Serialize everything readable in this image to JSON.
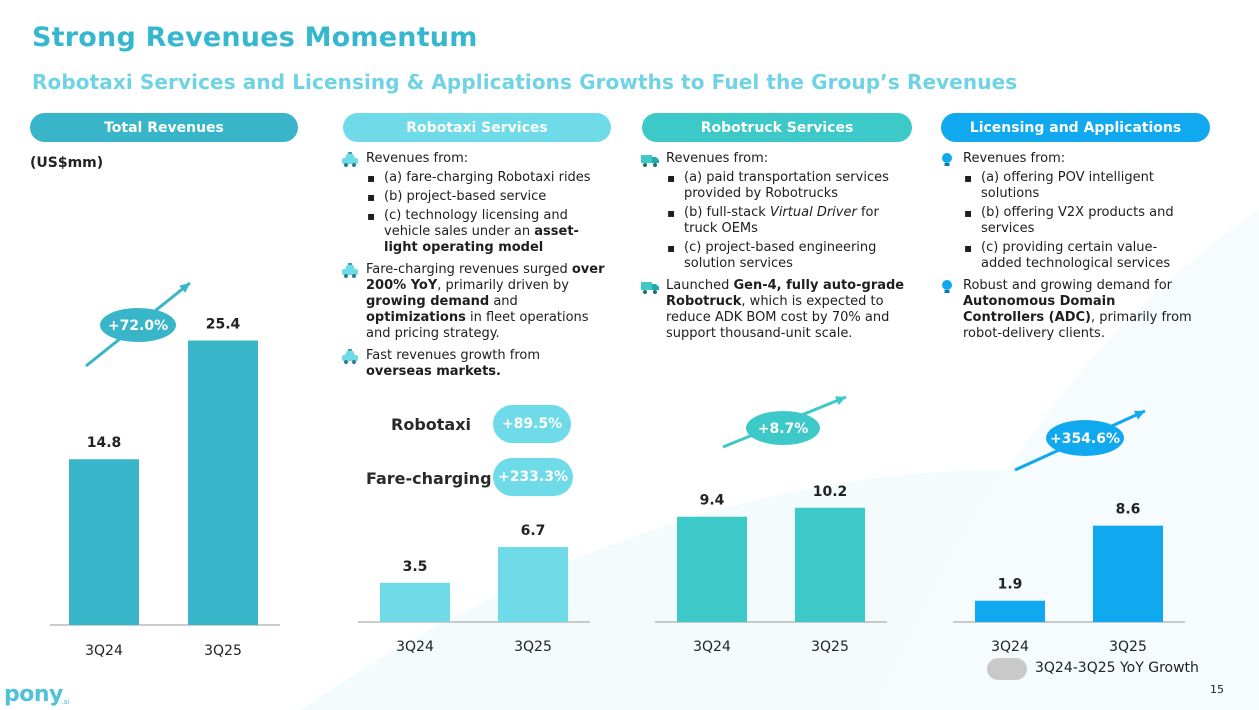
{
  "page": {
    "title": "Strong Revenues Momentum",
    "subtitle": "Robotaxi Services and Licensing & Applications Growths to Fuel the Group’s Revenues",
    "unit": "(US$mm)",
    "page_number": "15",
    "logo_text": "pony",
    "logo_suffix": ".ai",
    "legend": "3Q24-3Q25 YoY Growth"
  },
  "colors": {
    "title": "#35b8cf",
    "total": "#39b5ca",
    "robotaxi": "#6fdbe8",
    "robotruck": "#3ec9c9",
    "licensing": "#10a8ef",
    "legend_swatch": "#c9c9c9"
  },
  "segments": [
    {
      "name": "Total Revenues"
    },
    {
      "name": "Robotaxi Services"
    },
    {
      "name": "Robotruck Services"
    },
    {
      "name": "Licensing and Applications"
    }
  ],
  "robotaxi_text": {
    "revenues_from": "Revenues from:",
    "items": [
      "(a) fare-charging Robotaxi rides",
      "(b) project-based service",
      "(c) technology licensing and vehicle sales under an"
    ],
    "item3_bold": "asset-light operating model",
    "p2_a": "Fare-charging revenues surged",
    "p2_b": "over 200% YoY",
    "p2_c": ", primarily driven by",
    "p2_d": "growing demand",
    "p2_e": "and",
    "p2_f": "optimizations",
    "p2_g": "in fleet operations and pricing strategy.",
    "p3_a": "Fast revenues growth from",
    "p3_b": "overseas markets.",
    "kpi1_label": "Robotaxi",
    "kpi1_value": "+89.5%",
    "kpi2_label": "Fare-charging",
    "kpi2_value": "+233.3%"
  },
  "robotruck_text": {
    "revenues_from": "Revenues from:",
    "item1": "(a) paid transportation services provided by Robotrucks",
    "item2_a": "(b) full-stack",
    "item2_b": "Virtual Driver",
    "item2_c": "for truck OEMs",
    "item3": "(c) project-based engineering solution services",
    "p2_a": "Launched",
    "p2_b": "Gen-4, fully auto-grade Robotruck",
    "p2_c": ", which is expected to reduce ADK BOM cost by 70% and support thousand-unit scale."
  },
  "licensing_text": {
    "revenues_from": "Revenues from:",
    "items": [
      "(a) offering POV intelligent solutions",
      "(b) offering V2X products and services",
      "(c) providing certain value-added technological services"
    ],
    "p2_a": "Robust and growing demand for",
    "p2_b": "Autonomous Domain Controllers (ADC)",
    "p2_c": ", primarily from robot-delivery clients."
  },
  "chart_data": [
    {
      "type": "bar",
      "title": "Total Revenues",
      "categories": [
        "3Q24",
        "3Q25"
      ],
      "values": [
        14.8,
        25.4
      ],
      "labels": [
        "14.8",
        "25.4"
      ],
      "growth": "+72.0%",
      "unit": "US$mm",
      "ylim": [
        0,
        25.4
      ]
    },
    {
      "type": "bar",
      "title": "Robotaxi Services",
      "categories": [
        "3Q24",
        "3Q25"
      ],
      "values": [
        3.5,
        6.7
      ],
      "labels": [
        "3.5",
        "6.7"
      ],
      "growth": "+89.5%",
      "unit": "US$mm",
      "ylim": [
        0,
        25.4
      ]
    },
    {
      "type": "bar",
      "title": "Robotruck Services",
      "categories": [
        "3Q24",
        "3Q25"
      ],
      "values": [
        9.4,
        10.2
      ],
      "labels": [
        "9.4",
        "10.2"
      ],
      "growth": "+8.7%",
      "unit": "US$mm",
      "ylim": [
        0,
        25.4
      ]
    },
    {
      "type": "bar",
      "title": "Licensing and Applications",
      "categories": [
        "3Q24",
        "3Q25"
      ],
      "values": [
        1.9,
        8.6
      ],
      "labels": [
        "1.9",
        "8.6"
      ],
      "growth": "+354.6%",
      "unit": "US$mm",
      "ylim": [
        0,
        25.4
      ]
    }
  ]
}
